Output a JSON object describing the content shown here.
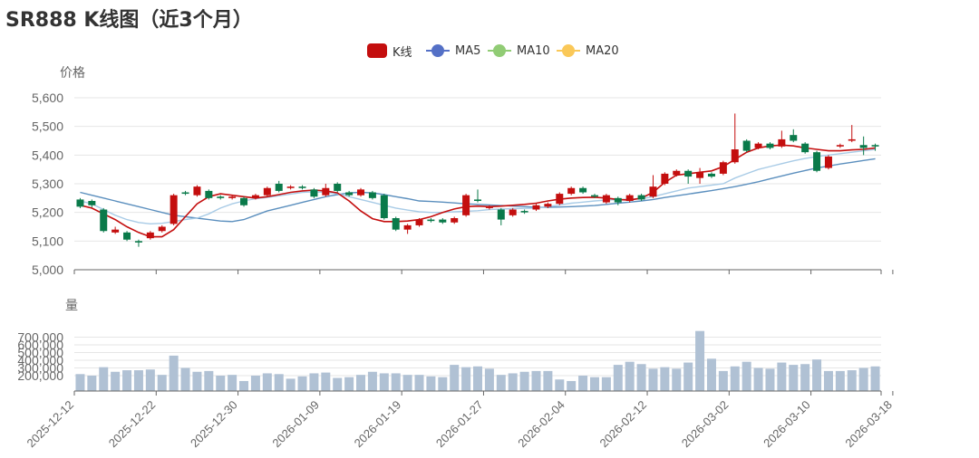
{
  "title": "SR888 K线图（近3个月）",
  "legend": [
    {
      "label": "K线",
      "kind": "candle",
      "color": "#c40e0e"
    },
    {
      "label": "MA5",
      "kind": "line",
      "color": "#5470c6"
    },
    {
      "label": "MA10",
      "kind": "line",
      "color": "#91cc75"
    },
    {
      "label": "MA20",
      "kind": "line",
      "color": "#fac858"
    }
  ],
  "colors": {
    "up": "#c40e0e",
    "down": "#0a7a4a",
    "volume": "#b0c1d4",
    "ma5": "#c40e0e",
    "ma10": "#a8cbe6",
    "ma20": "#5b8fbe",
    "grid": "#e6e6e6",
    "axis": "#666666"
  },
  "chart_data": [
    {
      "type": "candlestick",
      "ylabel": "价格",
      "ylim": [
        5000,
        5600
      ],
      "yticks": [
        5000,
        5100,
        5200,
        5300,
        5400,
        5500,
        5600
      ],
      "ytick_labels": [
        "5,000",
        "5,100",
        "5,200",
        "5,300",
        "5,400",
        "5,500",
        "5,600"
      ],
      "grid": true,
      "series_order": [
        "open",
        "close",
        "low",
        "high"
      ],
      "candles": [
        [
          5245,
          5220,
          5215,
          5250
        ],
        [
          5240,
          5225,
          5218,
          5245
        ],
        [
          5210,
          5135,
          5130,
          5215
        ],
        [
          5130,
          5140,
          5125,
          5150
        ],
        [
          5130,
          5105,
          5100,
          5135
        ],
        [
          5100,
          5095,
          5080,
          5105
        ],
        [
          5110,
          5130,
          5105,
          5135
        ],
        [
          5135,
          5150,
          5130,
          5155
        ],
        [
          5160,
          5260,
          5155,
          5265
        ],
        [
          5270,
          5265,
          5260,
          5275
        ],
        [
          5260,
          5290,
          5255,
          5295
        ],
        [
          5275,
          5250,
          5245,
          5280
        ],
        [
          5255,
          5250,
          5245,
          5260
        ],
        [
          5250,
          5255,
          5245,
          5260
        ],
        [
          5250,
          5225,
          5220,
          5255
        ],
        [
          5250,
          5260,
          5245,
          5265
        ],
        [
          5260,
          5285,
          5255,
          5290
        ],
        [
          5300,
          5275,
          5270,
          5310
        ],
        [
          5285,
          5290,
          5280,
          5295
        ],
        [
          5290,
          5285,
          5280,
          5295
        ],
        [
          5280,
          5255,
          5250,
          5285
        ],
        [
          5260,
          5285,
          5255,
          5300
        ],
        [
          5300,
          5275,
          5270,
          5305
        ],
        [
          5270,
          5260,
          5255,
          5275
        ],
        [
          5260,
          5280,
          5255,
          5285
        ],
        [
          5270,
          5250,
          5245,
          5275
        ],
        [
          5260,
          5180,
          5175,
          5265
        ],
        [
          5180,
          5140,
          5135,
          5185
        ],
        [
          5140,
          5155,
          5125,
          5160
        ],
        [
          5155,
          5175,
          5150,
          5180
        ],
        [
          5175,
          5170,
          5165,
          5180
        ],
        [
          5175,
          5165,
          5160,
          5180
        ],
        [
          5165,
          5180,
          5160,
          5185
        ],
        [
          5190,
          5260,
          5185,
          5265
        ],
        [
          5245,
          5240,
          5235,
          5280
        ],
        [
          5215,
          5220,
          5210,
          5225
        ],
        [
          5210,
          5175,
          5155,
          5215
        ],
        [
          5190,
          5210,
          5185,
          5215
        ],
        [
          5205,
          5200,
          5195,
          5210
        ],
        [
          5210,
          5225,
          5205,
          5230
        ],
        [
          5220,
          5230,
          5215,
          5235
        ],
        [
          5230,
          5265,
          5225,
          5270
        ],
        [
          5265,
          5285,
          5260,
          5290
        ],
        [
          5285,
          5270,
          5265,
          5290
        ],
        [
          5260,
          5255,
          5250,
          5265
        ],
        [
          5235,
          5260,
          5230,
          5265
        ],
        [
          5250,
          5235,
          5225,
          5255
        ],
        [
          5240,
          5260,
          5235,
          5265
        ],
        [
          5260,
          5245,
          5240,
          5265
        ],
        [
          5255,
          5290,
          5250,
          5330
        ],
        [
          5300,
          5335,
          5295,
          5340
        ],
        [
          5330,
          5345,
          5325,
          5350
        ],
        [
          5345,
          5325,
          5300,
          5350
        ],
        [
          5320,
          5340,
          5300,
          5355
        ],
        [
          5335,
          5325,
          5320,
          5340
        ],
        [
          5335,
          5375,
          5330,
          5380
        ],
        [
          5375,
          5420,
          5370,
          5545
        ],
        [
          5450,
          5415,
          5410,
          5455
        ],
        [
          5425,
          5440,
          5420,
          5445
        ],
        [
          5440,
          5425,
          5420,
          5445
        ],
        [
          5430,
          5455,
          5425,
          5485
        ],
        [
          5470,
          5450,
          5445,
          5490
        ],
        [
          5440,
          5410,
          5405,
          5445
        ],
        [
          5410,
          5345,
          5340,
          5415
        ],
        [
          5355,
          5395,
          5350,
          5400
        ],
        [
          5430,
          5435,
          5425,
          5440
        ],
        [
          5450,
          5455,
          5445,
          5505
        ],
        [
          5435,
          5425,
          5400,
          5465
        ],
        [
          5435,
          5430,
          5415,
          5440
        ]
      ],
      "ma5": [
        5270,
        5260,
        5250,
        5240,
        5230,
        5220,
        5210,
        5200,
        5190,
        5185,
        5180,
        5175,
        5170,
        5168,
        5175,
        5190,
        5205,
        5215,
        5225,
        5235,
        5245,
        5255,
        5262,
        5268,
        5270,
        5268,
        5262,
        5255,
        5248,
        5240,
        5238,
        5236,
        5233,
        5230,
        5228,
        5226,
        5224,
        5222,
        5220,
        5218,
        5218,
        5219,
        5220,
        5222,
        5224,
        5228,
        5232,
        5236,
        5240,
        5245,
        5252,
        5258,
        5264,
        5270,
        5276,
        5283,
        5290,
        5298,
        5307,
        5317,
        5327,
        5337,
        5346,
        5355,
        5362,
        5369,
        5375,
        5381,
        5387
      ],
      "ma10": [
        5240,
        5230,
        5210,
        5190,
        5175,
        5165,
        5160,
        5162,
        5168,
        5175,
        5180,
        5195,
        5215,
        5230,
        5240,
        5248,
        5252,
        5258,
        5264,
        5270,
        5272,
        5270,
        5265,
        5255,
        5245,
        5235,
        5225,
        5215,
        5208,
        5202,
        5200,
        5200,
        5202,
        5204,
        5206,
        5210,
        5212,
        5213,
        5214,
        5215,
        5220,
        5226,
        5232,
        5236,
        5240,
        5243,
        5245,
        5246,
        5248,
        5255,
        5265,
        5275,
        5285,
        5290,
        5295,
        5300,
        5320,
        5335,
        5350,
        5360,
        5370,
        5380,
        5388,
        5395,
        5400,
        5405,
        5410,
        5415,
        5420
      ],
      "ma20": [
        5225,
        5215,
        5195,
        5175,
        5150,
        5130,
        5115,
        5115,
        5140,
        5185,
        5230,
        5255,
        5265,
        5260,
        5255,
        5250,
        5255,
        5262,
        5270,
        5275,
        5278,
        5275,
        5268,
        5240,
        5205,
        5178,
        5168,
        5168,
        5170,
        5175,
        5185,
        5200,
        5212,
        5220,
        5222,
        5220,
        5222,
        5225,
        5228,
        5232,
        5240,
        5246,
        5250,
        5252,
        5253,
        5250,
        5245,
        5243,
        5250,
        5270,
        5305,
        5330,
        5335,
        5340,
        5345,
        5360,
        5385,
        5410,
        5425,
        5432,
        5435,
        5432,
        5425,
        5420,
        5415,
        5415,
        5418,
        5420,
        5425
      ]
    },
    {
      "type": "bar",
      "ylabel": "量",
      "ylim": [
        0,
        800000
      ],
      "yticks": [
        200000,
        300000,
        400000,
        500000,
        600000,
        700000
      ],
      "ytick_labels": [
        "200,000",
        "300,000",
        "400,000",
        "500,000",
        "600,000",
        "700,000"
      ],
      "x_tick_labels": [
        "2025-12-12",
        "2025-12-22",
        "2025-12-30",
        "2026-01-09",
        "2026-01-19",
        "2026-01-27",
        "2026-02-04",
        "2026-02-12",
        "2026-03-02",
        "2026-03-10",
        "2026-03-18"
      ],
      "x_tick_index": [
        0,
        7,
        14,
        21,
        28,
        35,
        42,
        49,
        56,
        63,
        70
      ],
      "volumes": [
        220000,
        200000,
        310000,
        250000,
        270000,
        270000,
        280000,
        210000,
        460000,
        300000,
        250000,
        260000,
        200000,
        210000,
        130000,
        200000,
        230000,
        220000,
        160000,
        190000,
        230000,
        240000,
        170000,
        180000,
        210000,
        250000,
        230000,
        230000,
        210000,
        210000,
        190000,
        180000,
        340000,
        310000,
        320000,
        290000,
        210000,
        230000,
        250000,
        260000,
        260000,
        150000,
        130000,
        200000,
        180000,
        180000,
        340000,
        380000,
        350000,
        290000,
        310000,
        290000,
        370000,
        780000,
        420000,
        260000,
        320000,
        380000,
        300000,
        290000,
        370000,
        340000,
        350000,
        410000,
        260000,
        260000,
        270000,
        300000,
        320000
      ]
    }
  ]
}
